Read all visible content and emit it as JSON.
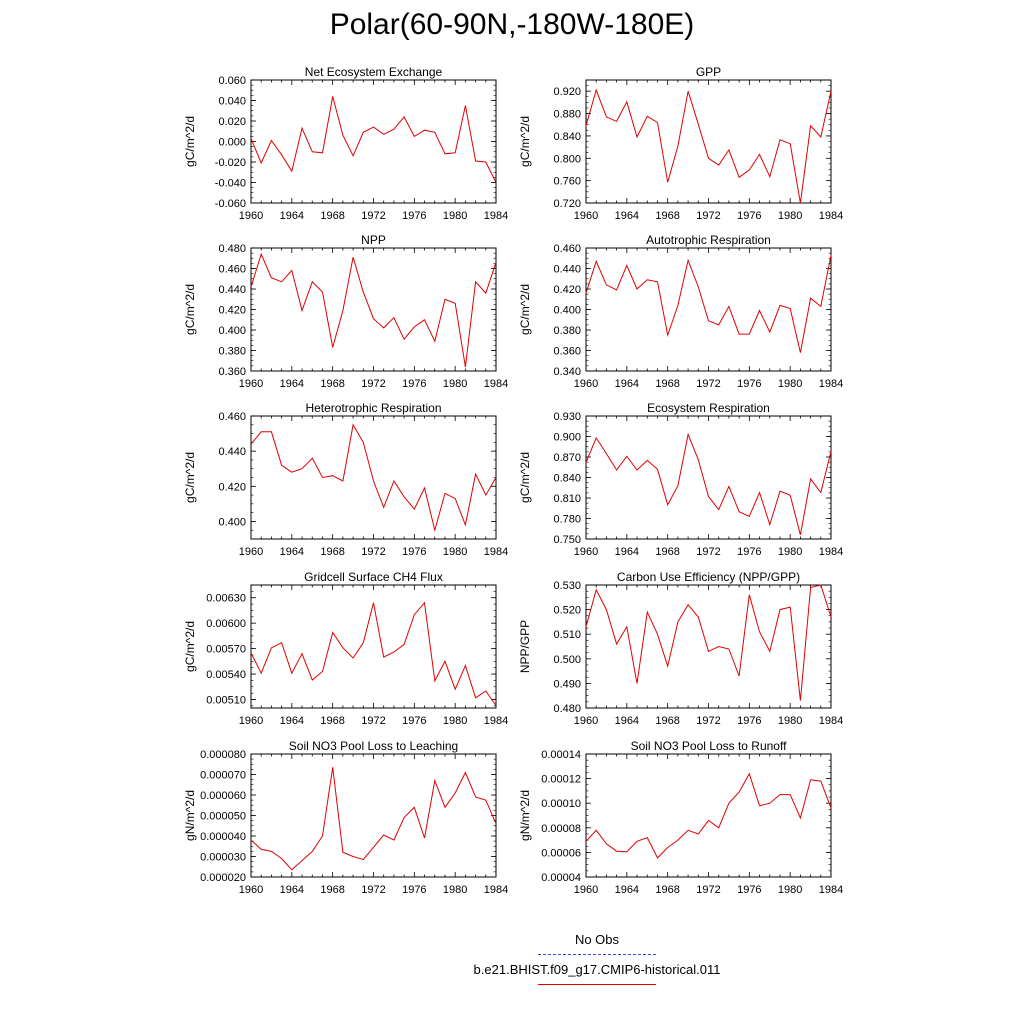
{
  "title": "Polar(60-90N,-180W-180E)",
  "legend": [
    {
      "label": "No Obs",
      "color": "#4444dd",
      "style": "dashed"
    },
    {
      "label": "b.e21.BHIST.f09_g17.CMIP6-historical.011",
      "color": "#e00000",
      "style": "solid"
    }
  ],
  "chart_data": [
    {
      "type": "line",
      "title": "Net Ecosystem Exchange",
      "ylabel": "gC/m^2/d",
      "xlim": [
        1960,
        1984
      ],
      "ylim": [
        -0.06,
        0.06
      ],
      "xticks": [
        "1960",
        "1964",
        "1968",
        "1972",
        "1976",
        "1980",
        "1984"
      ],
      "yticks": [
        "-0.060",
        "-0.040",
        "-0.020",
        "0.000",
        "0.020",
        "0.040",
        "0.060"
      ],
      "series": [
        {
          "color": "#e00000",
          "x": [
            1960,
            1961,
            1962,
            1963,
            1964,
            1965,
            1966,
            1967,
            1968,
            1969,
            1970,
            1971,
            1972,
            1973,
            1974,
            1975,
            1976,
            1977,
            1978,
            1979,
            1980,
            1981,
            1982,
            1983,
            1984
          ],
          "values": [
            0.003,
            -0.021,
            0.001,
            -0.013,
            -0.029,
            0.013,
            -0.01,
            -0.011,
            0.044,
            0.006,
            -0.014,
            0.009,
            0.014,
            0.007,
            0.012,
            0.024,
            0.005,
            0.011,
            0.009,
            -0.012,
            -0.011,
            0.035,
            -0.019,
            -0.02,
            -0.04
          ]
        }
      ]
    },
    {
      "type": "line",
      "title": "GPP",
      "ylabel": "gC/m^2/d",
      "xlim": [
        1960,
        1984
      ],
      "ylim": [
        0.72,
        0.94
      ],
      "xticks": [
        "1960",
        "1964",
        "1968",
        "1972",
        "1976",
        "1980",
        "1984"
      ],
      "yticks": [
        "0.720",
        "0.760",
        "0.800",
        "0.840",
        "0.880",
        "0.920"
      ],
      "series": [
        {
          "color": "#e00000",
          "x": [
            1960,
            1961,
            1962,
            1963,
            1964,
            1965,
            1966,
            1967,
            1968,
            1969,
            1970,
            1971,
            1972,
            1973,
            1974,
            1975,
            1976,
            1977,
            1978,
            1979,
            1980,
            1981,
            1982,
            1983,
            1984
          ],
          "values": [
            0.858,
            0.922,
            0.874,
            0.866,
            0.901,
            0.838,
            0.875,
            0.864,
            0.757,
            0.822,
            0.92,
            0.861,
            0.8,
            0.788,
            0.815,
            0.766,
            0.779,
            0.807,
            0.767,
            0.833,
            0.826,
            0.72,
            0.858,
            0.838,
            0.92
          ]
        }
      ]
    },
    {
      "type": "line",
      "title": "NPP",
      "ylabel": "gC/m^2/d",
      "xlim": [
        1960,
        1984
      ],
      "ylim": [
        0.36,
        0.48
      ],
      "xticks": [
        "1960",
        "1964",
        "1968",
        "1972",
        "1976",
        "1980",
        "1984"
      ],
      "yticks": [
        "0.360",
        "0.380",
        "0.400",
        "0.420",
        "0.440",
        "0.460",
        "0.480"
      ],
      "series": [
        {
          "color": "#e00000",
          "x": [
            1960,
            1961,
            1962,
            1963,
            1964,
            1965,
            1966,
            1967,
            1968,
            1969,
            1970,
            1971,
            1972,
            1973,
            1974,
            1975,
            1976,
            1977,
            1978,
            1979,
            1980,
            1981,
            1982,
            1983,
            1984
          ],
          "values": [
            0.442,
            0.474,
            0.451,
            0.447,
            0.458,
            0.419,
            0.447,
            0.437,
            0.383,
            0.419,
            0.471,
            0.437,
            0.411,
            0.402,
            0.412,
            0.391,
            0.403,
            0.41,
            0.389,
            0.43,
            0.426,
            0.364,
            0.447,
            0.436,
            0.466
          ]
        }
      ]
    },
    {
      "type": "line",
      "title": "Autotrophic Respiration",
      "ylabel": "gC/m^2/d",
      "xlim": [
        1960,
        1984
      ],
      "ylim": [
        0.34,
        0.46
      ],
      "xticks": [
        "1960",
        "1964",
        "1968",
        "1972",
        "1976",
        "1980",
        "1984"
      ],
      "yticks": [
        "0.340",
        "0.360",
        "0.380",
        "0.400",
        "0.420",
        "0.440",
        "0.460"
      ],
      "series": [
        {
          "color": "#e00000",
          "x": [
            1960,
            1961,
            1962,
            1963,
            1964,
            1965,
            1966,
            1967,
            1968,
            1969,
            1970,
            1971,
            1972,
            1973,
            1974,
            1975,
            1976,
            1977,
            1978,
            1979,
            1980,
            1981,
            1982,
            1983,
            1984
          ],
          "values": [
            0.416,
            0.447,
            0.424,
            0.419,
            0.443,
            0.42,
            0.429,
            0.427,
            0.375,
            0.404,
            0.448,
            0.422,
            0.389,
            0.385,
            0.403,
            0.376,
            0.376,
            0.399,
            0.378,
            0.404,
            0.401,
            0.358,
            0.411,
            0.403,
            0.453
          ]
        }
      ]
    },
    {
      "type": "line",
      "title": "Heterotrophic Respiration",
      "ylabel": "gC/m^2/d",
      "xlim": [
        1960,
        1984
      ],
      "ylim": [
        0.39,
        0.46
      ],
      "xticks": [
        "1960",
        "1964",
        "1968",
        "1972",
        "1976",
        "1980",
        "1984"
      ],
      "yticks": [
        "0.400",
        "0.420",
        "0.440",
        "0.460"
      ],
      "series": [
        {
          "color": "#e00000",
          "x": [
            1960,
            1961,
            1962,
            1963,
            1964,
            1965,
            1966,
            1967,
            1968,
            1969,
            1970,
            1971,
            1972,
            1973,
            1974,
            1975,
            1976,
            1977,
            1978,
            1979,
            1980,
            1981,
            1982,
            1983,
            1984
          ],
          "values": [
            0.444,
            0.451,
            0.451,
            0.432,
            0.428,
            0.43,
            0.436,
            0.425,
            0.426,
            0.423,
            0.455,
            0.445,
            0.423,
            0.408,
            0.423,
            0.414,
            0.407,
            0.419,
            0.395,
            0.416,
            0.413,
            0.398,
            0.427,
            0.415,
            0.425
          ]
        }
      ]
    },
    {
      "type": "line",
      "title": "Ecosystem Respiration",
      "ylabel": "gC/m^2/d",
      "xlim": [
        1960,
        1984
      ],
      "ylim": [
        0.75,
        0.93
      ],
      "xticks": [
        "1960",
        "1964",
        "1968",
        "1972",
        "1976",
        "1980",
        "1984"
      ],
      "yticks": [
        "0.750",
        "0.780",
        "0.810",
        "0.840",
        "0.870",
        "0.900",
        "0.930"
      ],
      "series": [
        {
          "color": "#e00000",
          "x": [
            1960,
            1961,
            1962,
            1963,
            1964,
            1965,
            1966,
            1967,
            1968,
            1969,
            1970,
            1971,
            1972,
            1973,
            1974,
            1975,
            1976,
            1977,
            1978,
            1979,
            1980,
            1981,
            1982,
            1983,
            1984
          ],
          "values": [
            0.862,
            0.898,
            0.875,
            0.851,
            0.871,
            0.851,
            0.865,
            0.852,
            0.8,
            0.828,
            0.903,
            0.866,
            0.812,
            0.793,
            0.827,
            0.79,
            0.783,
            0.818,
            0.771,
            0.82,
            0.814,
            0.756,
            0.838,
            0.818,
            0.878
          ]
        }
      ]
    },
    {
      "type": "line",
      "title": "Gridcell Surface CH4 Flux",
      "ylabel": "gC/m^2/d",
      "xlim": [
        1960,
        1984
      ],
      "ylim": [
        0.005,
        0.00645
      ],
      "xticks": [
        "1960",
        "1964",
        "1968",
        "1972",
        "1976",
        "1980",
        "1984"
      ],
      "yticks": [
        "0.00510",
        "0.00540",
        "0.00570",
        "0.00600",
        "0.00630"
      ],
      "series": [
        {
          "color": "#e00000",
          "x": [
            1960,
            1961,
            1962,
            1963,
            1964,
            1965,
            1966,
            1967,
            1968,
            1969,
            1970,
            1971,
            1972,
            1973,
            1974,
            1975,
            1976,
            1977,
            1978,
            1979,
            1980,
            1981,
            1982,
            1983,
            1984
          ],
          "values": [
            0.00565,
            0.00541,
            0.00571,
            0.00577,
            0.00541,
            0.00564,
            0.00533,
            0.00543,
            0.00589,
            0.00571,
            0.00559,
            0.00577,
            0.00624,
            0.0056,
            0.00566,
            0.00575,
            0.0061,
            0.00624,
            0.00532,
            0.00555,
            0.00522,
            0.0055,
            0.00512,
            0.0052,
            0.00503
          ]
        }
      ]
    },
    {
      "type": "line",
      "title": "Carbon Use Efficiency (NPP/GPP)",
      "ylabel": "NPP/GPP",
      "xlim": [
        1960,
        1984
      ],
      "ylim": [
        0.48,
        0.53
      ],
      "xticks": [
        "1960",
        "1964",
        "1968",
        "1972",
        "1976",
        "1980",
        "1984"
      ],
      "yticks": [
        "0.480",
        "0.490",
        "0.500",
        "0.510",
        "0.520",
        "0.530"
      ],
      "series": [
        {
          "color": "#e00000",
          "x": [
            1960,
            1961,
            1962,
            1963,
            1964,
            1965,
            1966,
            1967,
            1968,
            1969,
            1970,
            1971,
            1972,
            1973,
            1974,
            1975,
            1976,
            1977,
            1978,
            1979,
            1980,
            1981,
            1982,
            1983,
            1984
          ],
          "values": [
            0.513,
            0.528,
            0.52,
            0.506,
            0.513,
            0.49,
            0.519,
            0.51,
            0.497,
            0.515,
            0.522,
            0.517,
            0.503,
            0.505,
            0.504,
            0.493,
            0.526,
            0.511,
            0.503,
            0.52,
            0.521,
            0.483,
            0.529,
            0.53,
            0.517
          ]
        }
      ]
    },
    {
      "type": "line",
      "title": "Soil NO3 Pool Loss to Leaching",
      "ylabel": "gN/m^2/d",
      "xlim": [
        1960,
        1984
      ],
      "ylim": [
        2e-05,
        8e-05
      ],
      "xticks": [
        "1960",
        "1964",
        "1968",
        "1972",
        "1976",
        "1980",
        "1984"
      ],
      "yticks": [
        "0.000020",
        "0.000030",
        "0.000040",
        "0.000050",
        "0.000060",
        "0.000070",
        "0.000080"
      ],
      "series": [
        {
          "color": "#e00000",
          "x": [
            1960,
            1961,
            1962,
            1963,
            1964,
            1965,
            1966,
            1967,
            1968,
            1969,
            1970,
            1971,
            1972,
            1973,
            1974,
            1975,
            1976,
            1977,
            1978,
            1979,
            1980,
            1981,
            1982,
            1983,
            1984
          ],
          "values": [
            3.8e-05,
            3.35e-05,
            3.25e-05,
            2.9e-05,
            2.35e-05,
            2.8e-05,
            3.25e-05,
            4e-05,
            7.35e-05,
            3.2e-05,
            3e-05,
            2.85e-05,
            3.45e-05,
            4.05e-05,
            3.8e-05,
            4.9e-05,
            5.4e-05,
            3.9e-05,
            6.7e-05,
            5.4e-05,
            6.1e-05,
            7.1e-05,
            5.9e-05,
            5.75e-05,
            4.6e-05
          ]
        }
      ]
    },
    {
      "type": "line",
      "title": "Soil NO3 Pool Loss to Runoff",
      "ylabel": "gN/m^2/d",
      "xlim": [
        1960,
        1984
      ],
      "ylim": [
        4e-05,
        0.00014
      ],
      "xticks": [
        "1960",
        "1964",
        "1968",
        "1972",
        "1976",
        "1980",
        "1984"
      ],
      "yticks": [
        "0.00004",
        "0.00006",
        "0.00008",
        "0.00010",
        "0.00012",
        "0.00014"
      ],
      "series": [
        {
          "color": "#e00000",
          "x": [
            1960,
            1961,
            1962,
            1963,
            1964,
            1965,
            1966,
            1967,
            1968,
            1969,
            1970,
            1971,
            1972,
            1973,
            1974,
            1975,
            1976,
            1977,
            1978,
            1979,
            1980,
            1981,
            1982,
            1983,
            1984
          ],
          "values": [
            6.9e-05,
            7.8e-05,
            6.7e-05,
            6.1e-05,
            6.05e-05,
            6.9e-05,
            7.2e-05,
            5.55e-05,
            6.4e-05,
            7e-05,
            7.8e-05,
            7.5e-05,
            8.6e-05,
            8e-05,
            0.0001,
            0.000109,
            0.000124,
            9.8e-05,
            0.0001,
            0.000107,
            0.000107,
            8.8e-05,
            0.000119,
            0.000118,
            9.6e-05
          ]
        }
      ]
    }
  ]
}
